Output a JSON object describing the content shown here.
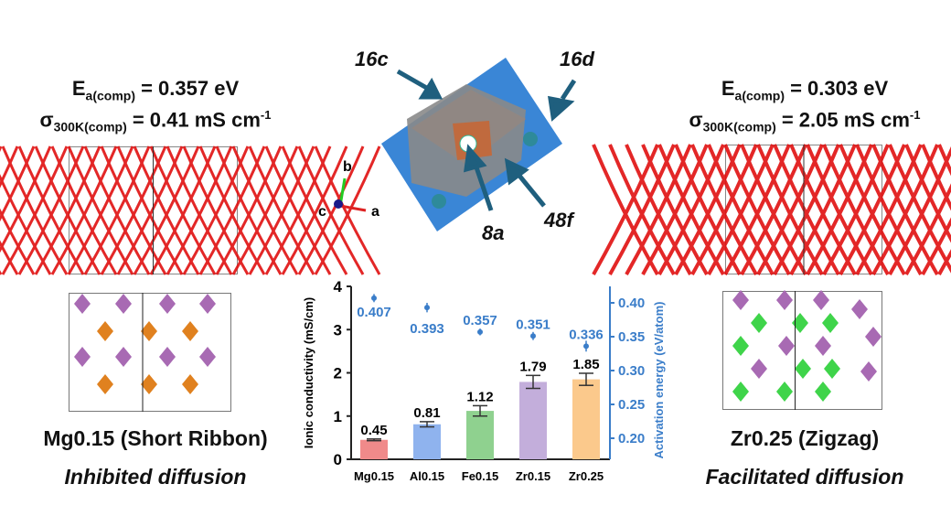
{
  "left": {
    "ea_symbol": "E",
    "ea_sub": "a(comp)",
    "ea_value": " = 0.357 eV",
    "sigma_symbol": "σ",
    "sigma_sub": "300K",
    "sigma_sub2": "(comp)",
    "sigma_value": " = 0.41 mS cm",
    "sigma_sup": "-1",
    "composition": "Mg0.15 (Short Ribbon)",
    "diffusion": "Inhibited diffusion",
    "diamond_colors": [
      "#a86ab3",
      "#e0811f"
    ]
  },
  "right": {
    "ea_symbol": "E",
    "ea_sub": "a(comp)",
    "ea_value": " = 0.303 eV",
    "sigma_symbol": "σ",
    "sigma_sub": "300K",
    "sigma_sub2": "(comp)",
    "sigma_value": " = 2.05 mS cm",
    "sigma_sup": "-1",
    "composition": "Zr0.25 (Zigzag)",
    "diffusion": "Facilitated diffusion",
    "diamond_colors": [
      "#a86ab3",
      "#3fd44a"
    ]
  },
  "structure": {
    "labels": {
      "site_16c": "16c",
      "site_16d": "16d",
      "site_8a": "8a",
      "site_48f": "48f"
    },
    "axes": {
      "a": "a",
      "b": "b",
      "c": "c"
    }
  },
  "chart_data": {
    "type": "bar",
    "categories": [
      "Mg0.15",
      "Al0.15",
      "Fe0.15",
      "Zr0.15",
      "Zr0.25"
    ],
    "ylabel": "Ionic conductivity (mS/cm)",
    "ylim": [
      0,
      4
    ],
    "yticks": [
      "0",
      "1",
      "2",
      "3",
      "4"
    ],
    "series": [
      {
        "axis": "left",
        "kind": "bar",
        "values": [
          0.45,
          0.81,
          1.12,
          1.79,
          1.85
        ],
        "labels": [
          "0.45",
          "0.81",
          "1.12",
          "1.79",
          "1.85"
        ],
        "errors": [
          0.02,
          0.06,
          0.12,
          0.15,
          0.14
        ],
        "colors": [
          "#f08a8a",
          "#8fb3ee",
          "#8fd18f",
          "#c3aedb",
          "#fbc98c"
        ]
      },
      {
        "axis": "right",
        "kind": "scatter",
        "values": [
          0.407,
          0.393,
          0.357,
          0.351,
          0.336
        ],
        "labels": [
          "0.407",
          "0.393",
          "0.357",
          "0.351",
          "0.336"
        ],
        "errors": [
          0.006,
          0.007,
          0.005,
          0.006,
          0.008
        ],
        "color": "#3a7dc9"
      }
    ],
    "y2label": "Activation energy  (eV/atom)",
    "y2lim": [
      0.165,
      0.42
    ],
    "y2ticks": [
      "0.20",
      "0.25",
      "0.30",
      "0.35",
      "0.40"
    ],
    "grid": false
  }
}
